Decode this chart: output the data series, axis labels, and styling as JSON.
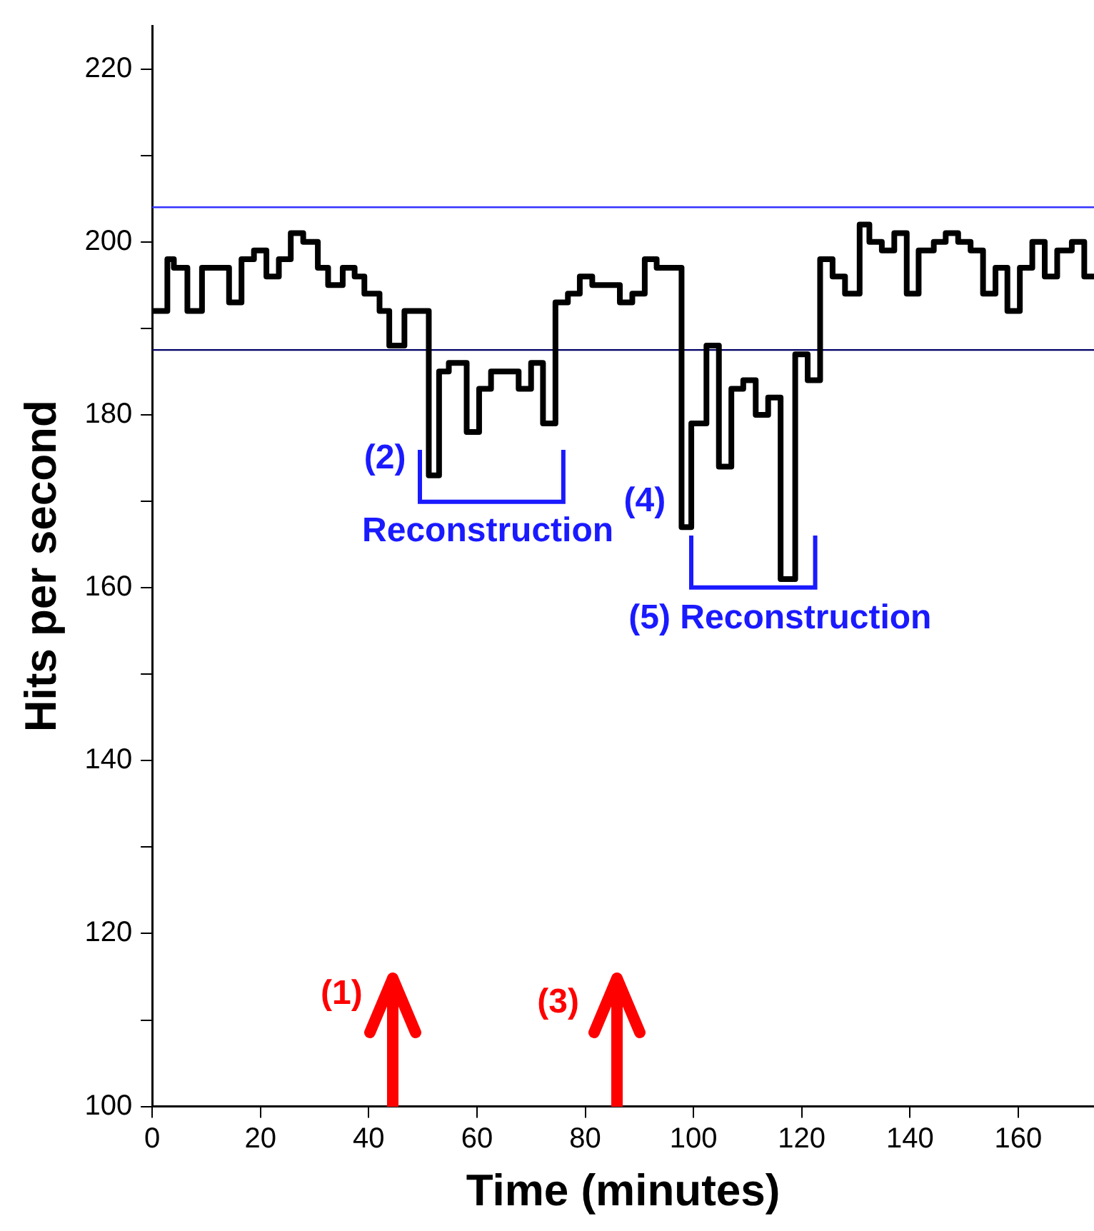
{
  "chart_data": {
    "type": "step",
    "xlabel": "Time (minutes)",
    "ylabel": "Hits per second",
    "xlim": [
      0,
      174
    ],
    "xticks": [
      0,
      20,
      40,
      60,
      80,
      100,
      120,
      140,
      160
    ],
    "ylim": [
      100,
      225
    ],
    "yticks": [
      100,
      {
        "value": 110,
        "label": null
      },
      120,
      {
        "value": 130,
        "label": null
      },
      140,
      {
        "value": 150,
        "label": null
      },
      160,
      {
        "value": 170,
        "label": null
      },
      180,
      {
        "value": 190,
        "label": null
      },
      200,
      {
        "value": 210,
        "label": null
      },
      220
    ],
    "grid": false,
    "legend": false,
    "series": [
      {
        "color": "#000000",
        "x": [
          0,
          2.8,
          4,
          6.5,
          9.2,
          14.2,
          16.5,
          18.8,
          21.1,
          23.4,
          25.6,
          27.9,
          30.6,
          32.5,
          35.2,
          37.4,
          39.2,
          42,
          43.8,
          46.6,
          51.1,
          53,
          54.8,
          58.1,
          60.4,
          62.6,
          67.7,
          70,
          72.2,
          74.5,
          76.8,
          79,
          81.3,
          86.4,
          88.7,
          91,
          93.2,
          97.8,
          99.6,
          102.4,
          104.7,
          107,
          109.2,
          111.5,
          113.8,
          116.1,
          118.8,
          121.1,
          123.4,
          125.7,
          128,
          130.7,
          132.5,
          134.8,
          137.1,
          139.4,
          141.6,
          144.4,
          146.6,
          148.9,
          151.2,
          153.5,
          155.8,
          158,
          160.3,
          162.6,
          164.9,
          167.2,
          169.9,
          172.2,
          174
        ],
        "values": [
          192,
          198,
          197,
          192,
          197,
          193,
          198,
          199,
          196,
          198,
          201,
          200,
          197,
          195,
          197,
          196,
          194,
          192,
          188,
          192,
          173,
          185,
          186,
          178,
          183,
          185,
          183,
          186,
          179,
          193,
          194,
          196,
          195,
          193,
          194,
          198,
          197,
          167,
          179,
          188,
          174,
          183,
          184,
          180,
          182,
          161,
          187,
          184,
          198,
          196,
          194,
          202,
          200,
          199,
          201,
          194,
          199,
          200,
          201,
          200,
          199,
          194,
          197,
          192,
          197,
          200,
          196,
          199,
          200,
          196,
          196
        ]
      }
    ],
    "ref_lines": [
      {
        "axis": "y",
        "value": 204,
        "color": "#3333ff"
      },
      {
        "axis": "y",
        "value": 187.5,
        "color": "#000066"
      }
    ],
    "annotations": [
      "(1)",
      "(2)",
      "Reconstruction",
      "(3)",
      "(4)",
      "(5) Reconstruction"
    ]
  }
}
